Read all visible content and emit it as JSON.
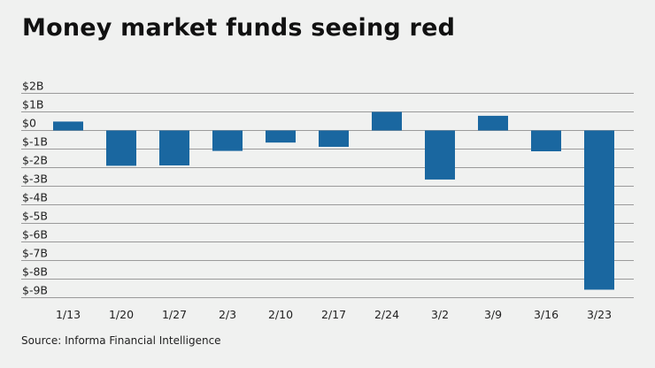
{
  "title": "Money market funds seeing red",
  "source": "Source: Informa Financial Intelligence",
  "colors": {
    "bar": "#1a67a0",
    "grid": "#9a9a9a",
    "background": "#f0f1f0"
  },
  "chart_data": {
    "type": "bar",
    "title": "Money market funds seeing red",
    "xlabel": "",
    "ylabel": "",
    "categories": [
      "1/13",
      "1/20",
      "1/27",
      "2/3",
      "2/10",
      "2/17",
      "2/24",
      "3/2",
      "3/9",
      "3/16",
      "3/23"
    ],
    "values": [
      0.48,
      -1.9,
      -1.88,
      -1.1,
      -0.65,
      -0.88,
      1.0,
      -2.64,
      0.79,
      -1.12,
      -8.57
    ],
    "unit": "billions USD",
    "ylim": [
      -9,
      2
    ],
    "yticks": [
      2,
      1,
      0,
      -1,
      -2,
      -3,
      -4,
      -5,
      -6,
      -7,
      -8,
      -9
    ],
    "ytick_labels": [
      "$2B",
      "$1B",
      "$0",
      "$-1B",
      "$-2B",
      "$-3B",
      "$-4B",
      "$-5B",
      "$-6B",
      "$-7B",
      "$-8B",
      "$-9B"
    ],
    "grid": true,
    "legend": "none"
  }
}
